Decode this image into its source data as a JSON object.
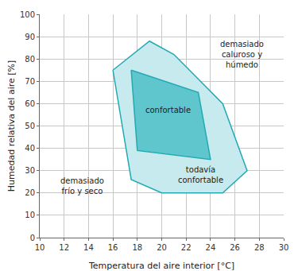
{
  "chart_data": {
    "type": "area",
    "x_label": "Temperatura del aire interior [°C]",
    "y_label": "Humedad relativa del aire [%]",
    "xlim": [
      10,
      30
    ],
    "xticks": [
      10,
      12,
      14,
      16,
      18,
      20,
      22,
      24,
      26,
      28,
      30
    ],
    "ylim": [
      0,
      100
    ],
    "yticks": [
      0,
      10,
      20,
      30,
      40,
      50,
      60,
      70,
      80,
      90,
      100
    ],
    "grid": true,
    "series": [
      {
        "x": [
          16,
          19,
          21,
          25,
          27,
          25,
          20,
          17.5,
          16
        ],
        "values": [
          75,
          88,
          82,
          60,
          30,
          20,
          20,
          26,
          75
        ],
        "color": "#c6eaed"
      },
      {
        "x": [
          17.5,
          23,
          24,
          18,
          17.5
        ],
        "values": [
          75,
          65,
          35,
          39,
          75
        ],
        "color": "#5fc6cd"
      }
    ],
    "annotations": [
      {
        "text": "demasiado\ncaluroso y\nhúmedo",
        "x": 26.6,
        "y": 82
      },
      {
        "text": "confortable",
        "x": 20.5,
        "y": 57
      },
      {
        "text": "todavía\nconfortable",
        "x": 23.2,
        "y": 28
      },
      {
        "text": "demasiado\nfrío y seco",
        "x": 13.5,
        "y": 23
      }
    ]
  }
}
